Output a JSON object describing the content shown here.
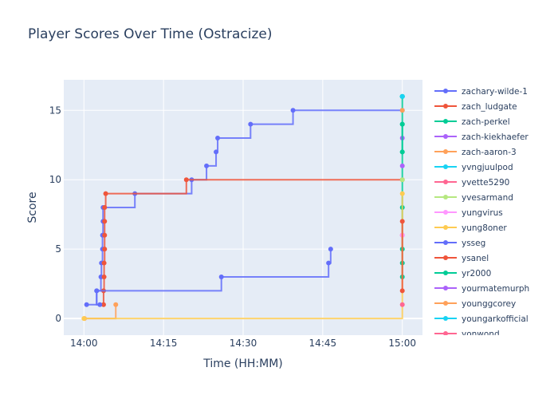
{
  "chart_data": {
    "type": "line",
    "line_shape": "step",
    "title": "Player Scores Over Time (Ostracize)",
    "xlabel": "Time (HH:MM)",
    "ylabel": "Score",
    "x_unit": "minutes after 14:00",
    "xlim": [
      -3.8,
      63.8
    ],
    "ylim": [
      -1.2,
      17.2
    ],
    "x_ticks": [
      {
        "v": 0,
        "label": "14:00"
      },
      {
        "v": 15,
        "label": "14:15"
      },
      {
        "v": 30,
        "label": "14:30"
      },
      {
        "v": 45,
        "label": "14:45"
      },
      {
        "v": 60,
        "label": "15:00"
      }
    ],
    "y_ticks": [
      {
        "v": 0,
        "label": "0"
      },
      {
        "v": 5,
        "label": "5"
      },
      {
        "v": 10,
        "label": "10"
      },
      {
        "v": 15,
        "label": "15"
      }
    ],
    "grid": true,
    "legend_position": "right",
    "series": [
      {
        "name": "zachary-wilde-1",
        "color": "#636efa",
        "x": [
          0.5,
          2.4,
          3.2,
          3.3,
          3.5,
          3.5,
          3.6,
          3.6,
          9.6,
          20.3,
          23.1,
          24.9,
          25.2,
          31.4,
          39.4,
          60
        ],
        "y": [
          1,
          2,
          3,
          4,
          5,
          6,
          7,
          8,
          9,
          10,
          11,
          12,
          13,
          14,
          15,
          15
        ]
      },
      {
        "name": "zach_ludgate",
        "color": "#EF553B",
        "x": [
          3.7,
          3.7,
          3.8,
          3.8,
          3.9,
          3.9,
          3.9,
          3.9,
          4.1,
          19.3,
          60
        ],
        "y": [
          1,
          2,
          3,
          4,
          5,
          6,
          7,
          8,
          9,
          10,
          10
        ]
      },
      {
        "name": "zach-perkel",
        "color": "#00cc96",
        "x": [
          60,
          60,
          60,
          60,
          60,
          60,
          60,
          60,
          60,
          60
        ],
        "y": [
          3,
          4,
          5,
          8,
          12,
          14,
          16,
          16,
          16,
          16
        ]
      },
      {
        "name": "zach-kiekhaefer",
        "color": "#ab63fa",
        "x": [
          60
        ],
        "y": [
          13
        ]
      },
      {
        "name": "zach-aaron-3",
        "color": "#FFA15A",
        "x": [
          0.1,
          6.0
        ],
        "y": [
          0,
          1
        ]
      },
      {
        "name": "yvngjuulpod",
        "color": "#19d3f3",
        "x": [
          60
        ],
        "y": [
          16
        ]
      },
      {
        "name": "yvette5290",
        "color": "#FF6692",
        "x": [
          60
        ],
        "y": [
          6
        ]
      },
      {
        "name": "yvesarmand",
        "color": "#B6E880",
        "x": [
          60
        ],
        "y": [
          10
        ]
      },
      {
        "name": "yungvirus",
        "color": "#FF97FF",
        "x": [
          60
        ],
        "y": [
          6
        ]
      },
      {
        "name": "yung8oner",
        "color": "#FECB52",
        "x": [
          0,
          60
        ],
        "y": [
          0,
          9
        ]
      },
      {
        "name": "ysseg",
        "color": "#636efa",
        "x": [
          3.0,
          2.4,
          25.9,
          46.1,
          46.5
        ],
        "y": [
          1,
          2,
          3,
          4,
          5
        ]
      },
      {
        "name": "ysanel",
        "color": "#EF553B",
        "x": [
          60,
          60
        ],
        "y": [
          2,
          7
        ]
      },
      {
        "name": "yr2000",
        "color": "#00cc96",
        "x": [
          60,
          60
        ],
        "y": [
          12,
          14
        ]
      },
      {
        "name": "yourmatemurph",
        "color": "#ab63fa",
        "x": [
          60
        ],
        "y": [
          11
        ]
      },
      {
        "name": "younggcorey",
        "color": "#FFA15A",
        "x": [
          60
        ],
        "y": [
          15
        ]
      },
      {
        "name": "youngarkofficial",
        "color": "#19d3f3",
        "x": [
          60
        ],
        "y": [
          16
        ]
      },
      {
        "name": "yonwond",
        "color": "#FF6692",
        "x": [
          60
        ],
        "y": [
          1
        ]
      }
    ]
  }
}
